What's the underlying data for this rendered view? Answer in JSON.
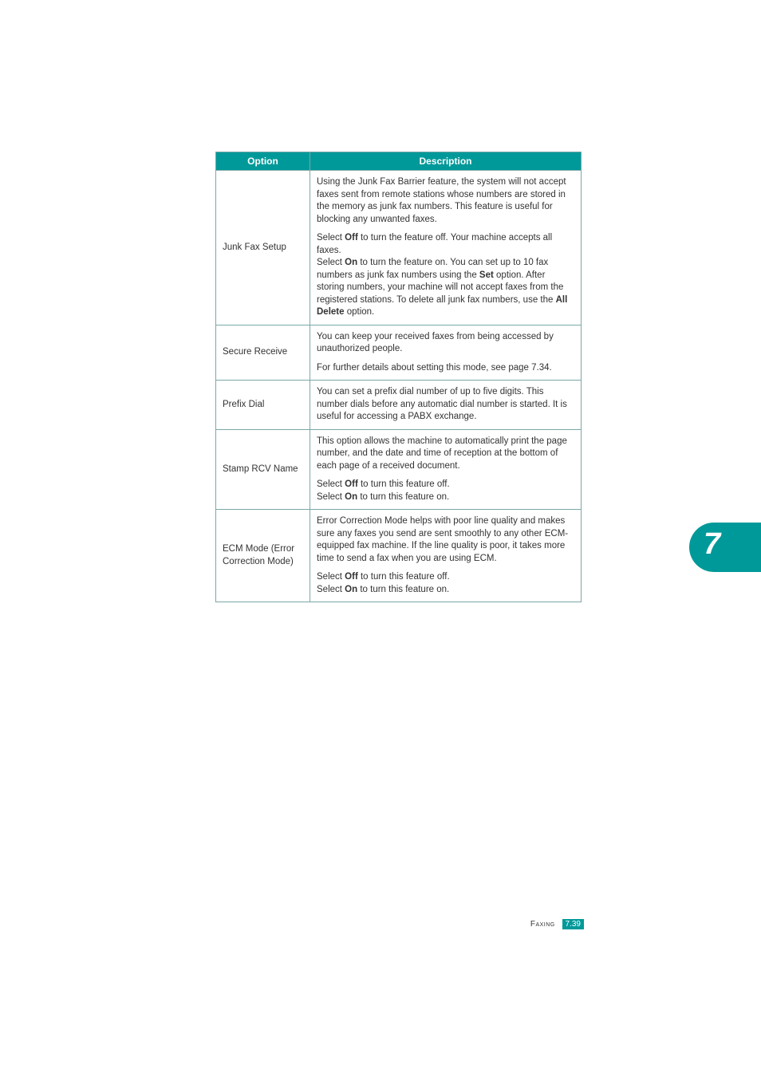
{
  "colors": {
    "header_bg": "#009999",
    "header_text": "#ffffff",
    "border": "#7aa8a8",
    "body_text": "#333333",
    "page_bg": "#ffffff"
  },
  "fonts": {
    "body_size_pt": 9,
    "header_size_pt": 9
  },
  "table": {
    "headers": {
      "option": "Option",
      "description": "Description"
    },
    "rows": [
      {
        "option": "Junk Fax Setup",
        "desc_p1": "Using the Junk Fax Barrier feature, the system will not accept faxes sent from remote stations whose numbers are stored in the memory as junk fax numbers. This feature is useful for blocking any unwanted faxes.",
        "desc_p2a": "Select ",
        "desc_p2_off": "Off",
        "desc_p2b": " to turn the feature off. Your machine accepts all faxes.",
        "desc_p2c": "Select ",
        "desc_p2_on": "On",
        "desc_p2d": " to turn the feature on. You can set up to 10 fax numbers as junk fax numbers using the ",
        "desc_p2_set": "Set",
        "desc_p2e": " option. After storing numbers, your machine will not accept faxes from the registered stations. To delete all junk fax numbers, use the ",
        "desc_p2_all": "All Delete",
        "desc_p2f": " option."
      },
      {
        "option": "Secure Receive",
        "desc_p1": "You can keep your received faxes from being accessed by unauthorized people.",
        "desc_p2": "For further details about setting this mode, see page 7.34."
      },
      {
        "option": "Prefix Dial",
        "desc_p1": "You can set a prefix dial number of up to five digits. This number dials before any automatic dial number is started. It is useful for accessing a PABX exchange."
      },
      {
        "option": "Stamp RCV Name",
        "desc_p1": "This option allows the machine to automatically print the page number, and the date and time of reception at the bottom of each page of a received document.",
        "desc_p2a": "Select ",
        "desc_p2_off": "Off",
        "desc_p2b": " to turn this feature off.",
        "desc_p2c": "Select ",
        "desc_p2_on": "On",
        "desc_p2d": " to turn this feature on."
      },
      {
        "option": "ECM Mode (Error Correction Mode)",
        "desc_p1": "Error Correction Mode helps with poor line quality and makes sure any faxes you send are sent smoothly to any other ECM-equipped fax machine. If the line quality is poor, it takes more time to send a fax when you are using ECM.",
        "desc_p2a": "Select ",
        "desc_p2_off": "Off",
        "desc_p2b": " to turn this feature off.",
        "desc_p2c": "Select ",
        "desc_p2_on": "On",
        "desc_p2d": " to turn this feature on."
      }
    ]
  },
  "side_tab": {
    "number": "7"
  },
  "footer": {
    "label": "Faxing",
    "page": "7.39"
  }
}
